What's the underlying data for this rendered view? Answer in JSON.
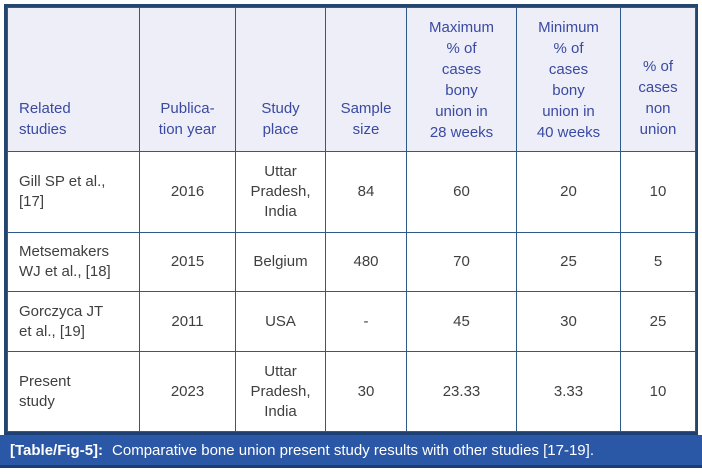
{
  "table": {
    "columns": [
      {
        "label": "Related\nstudies"
      },
      {
        "label": "Publica-\ntion year"
      },
      {
        "label": "Study\nplace"
      },
      {
        "label": "Sample\nsize"
      },
      {
        "label": "Maximum\n% of\ncases\nbony\nunion in\n28 weeks"
      },
      {
        "label": "Minimum\n% of\ncases\nbony\nunion in\n40 weeks"
      },
      {
        "label": "% of\ncases\nnon\nunion"
      }
    ],
    "rows": [
      {
        "cells": [
          "Gill SP et al.,\n[17]",
          "2016",
          "Uttar\nPradesh,\nIndia",
          "84",
          "60",
          "20",
          "10"
        ]
      },
      {
        "cells": [
          "Metsemakers\nWJ et al., [18]",
          "2015",
          "Belgium",
          "480",
          "70",
          "25",
          "5"
        ]
      },
      {
        "cells": [
          "Gorczyca JT\net al., [19]",
          "2011",
          "USA",
          "-",
          "45",
          "30",
          "25"
        ]
      },
      {
        "cells": [
          "Present\nstudy",
          "2023",
          "Uttar\nPradesh,\nIndia",
          "30",
          "23.33",
          "3.33",
          "10"
        ]
      }
    ]
  },
  "caption": {
    "label": "[Table/Fig-5]:",
    "text": "Comparative bone union present study results with other studies [17-19]."
  },
  "chart_data": {
    "type": "table",
    "title": "[Table/Fig-5]: Comparative bone union present study results with other studies [17-19].",
    "columns": [
      "Related studies",
      "Publication year",
      "Study place",
      "Sample size",
      "Maximum % of cases bony union in 28 weeks",
      "Minimum % of cases bony union in 40 weeks",
      "% of cases non union"
    ],
    "rows": [
      [
        "Gill SP et al., [17]",
        "2016",
        "Uttar Pradesh, India",
        "84",
        "60",
        "20",
        "10"
      ],
      [
        "Metsemakers WJ et al., [18]",
        "2015",
        "Belgium",
        "480",
        "70",
        "25",
        "5"
      ],
      [
        "Gorczyca JT et al., [19]",
        "2011",
        "USA",
        "-",
        "45",
        "30",
        "25"
      ],
      [
        "Present study",
        "2023",
        "Uttar Pradesh, India",
        "30",
        "23.33",
        "3.33",
        "10"
      ]
    ]
  },
  "colors": {
    "header_bg": "#edeef8",
    "header_text": "#3a4aa1",
    "body_text": "#3f3f3f",
    "grid_border": "#2d5a88",
    "outer_border": "#24466e",
    "caption_bg": "#2b57a7",
    "caption_text": "#ffffff"
  }
}
